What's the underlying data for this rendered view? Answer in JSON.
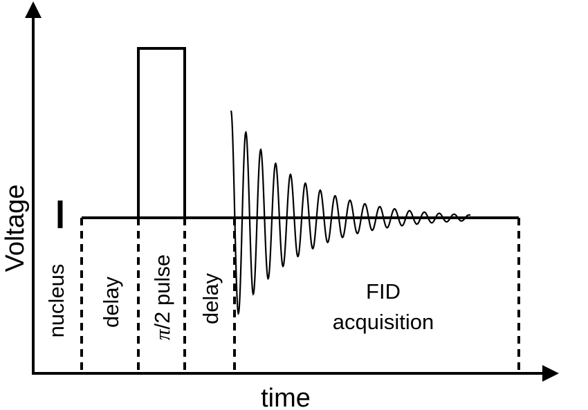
{
  "diagram": {
    "y_axis_label": "Voltage",
    "x_axis_label": "time",
    "segments": {
      "nucleus": "nucleus",
      "delay_1": "delay",
      "pulse_symbol": "π",
      "pulse_rest": "/2 pulse",
      "delay_2": "delay",
      "fid_line1": "FID",
      "fid_line2": "acquisition"
    },
    "colors": {
      "ink": "#000000",
      "background": "#ffffff"
    }
  }
}
